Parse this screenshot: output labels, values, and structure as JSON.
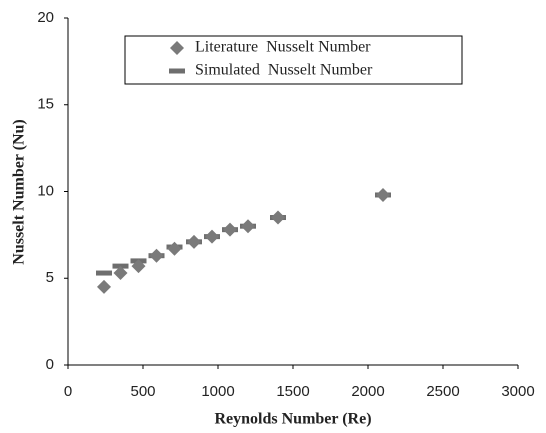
{
  "chart_data": {
    "type": "scatter",
    "x_label": "Reynolds Number (Re)",
    "y_label": "Nusselt Number (Nu)",
    "x": [
      240,
      350,
      470,
      590,
      710,
      840,
      960,
      1080,
      1200,
      1400,
      2100
    ],
    "series": [
      {
        "name": "Literature  Nusselt Number",
        "color": "#7a7a7a",
        "marker": "diamond",
        "values": [
          4.5,
          5.3,
          5.7,
          6.3,
          6.7,
          7.1,
          7.4,
          7.8,
          8.0,
          8.5,
          9.8
        ]
      },
      {
        "name": "Simulated  Nusselt Number",
        "color": "#6e6e6e",
        "marker": "dash",
        "values": [
          5.3,
          5.7,
          6.0,
          6.3,
          6.8,
          7.1,
          7.4,
          7.8,
          8.0,
          8.5,
          9.8
        ]
      }
    ],
    "xlim": [
      0,
      3000
    ],
    "xticks": [
      0,
      500,
      1000,
      1500,
      2000,
      2500,
      3000
    ],
    "ylim": [
      0,
      20
    ],
    "yticks": [
      0,
      5,
      10,
      15,
      20
    ],
    "grid": false,
    "legend": "top"
  }
}
